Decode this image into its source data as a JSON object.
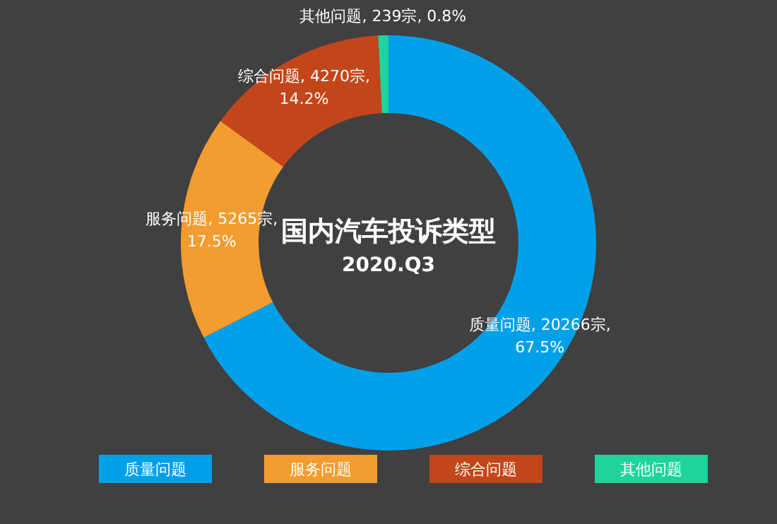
{
  "chart_data": {
    "type": "donut",
    "title": "国内汽车投诉类型",
    "subtitle": "2020.Q3",
    "categories": [
      "质量问题",
      "服务问题",
      "综合问题",
      "其他问题"
    ],
    "values": [
      20266,
      5265,
      4270,
      239
    ],
    "colors": [
      "#00a0e9",
      "#f39c2f",
      "#c3461a",
      "#1ed49c"
    ],
    "value_labels": [
      "质量问题, 20266宗, 67.5%",
      "服务问题, 5265宗, 17.5%",
      "综合问题, 4270宗, 14.2%",
      "其他问题, 239宗, 0.8%"
    ],
    "legend": "bottom"
  }
}
